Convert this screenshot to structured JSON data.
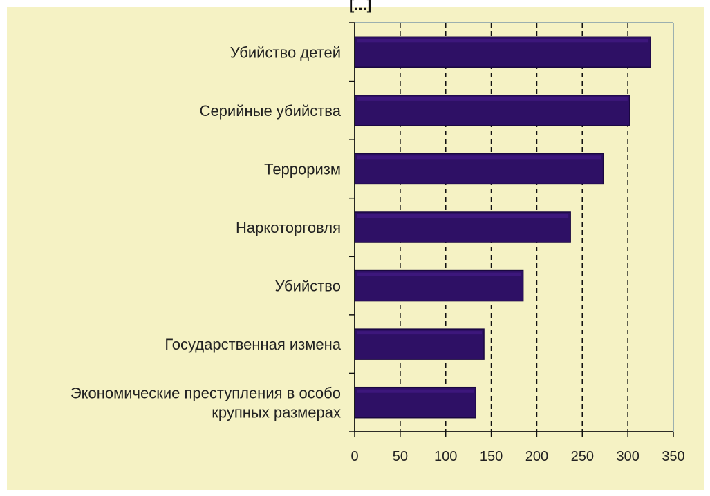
{
  "chart_data": {
    "type": "bar",
    "orientation": "horizontal",
    "title_fragment": "[...]",
    "categories": [
      "Убийство детей",
      "Серийные убийства",
      "Терроризм",
      "Наркоторговля",
      "Убийство",
      "Государственная измена",
      [
        "Экономические преступления в особо",
        "крупных размерах"
      ]
    ],
    "values": [
      325,
      302,
      273,
      237,
      185,
      142,
      133
    ],
    "xlim": [
      0,
      350
    ],
    "xticks": [
      0,
      50,
      100,
      150,
      200,
      250,
      300,
      350
    ],
    "grid": true,
    "grid_style": "dashed vertical",
    "legend": "none",
    "colors": {
      "bar": "#2e1065",
      "bar_highlight": "#4a1e90",
      "background": "#f5f2c4",
      "grid": "#111111",
      "text": "#222222"
    }
  }
}
